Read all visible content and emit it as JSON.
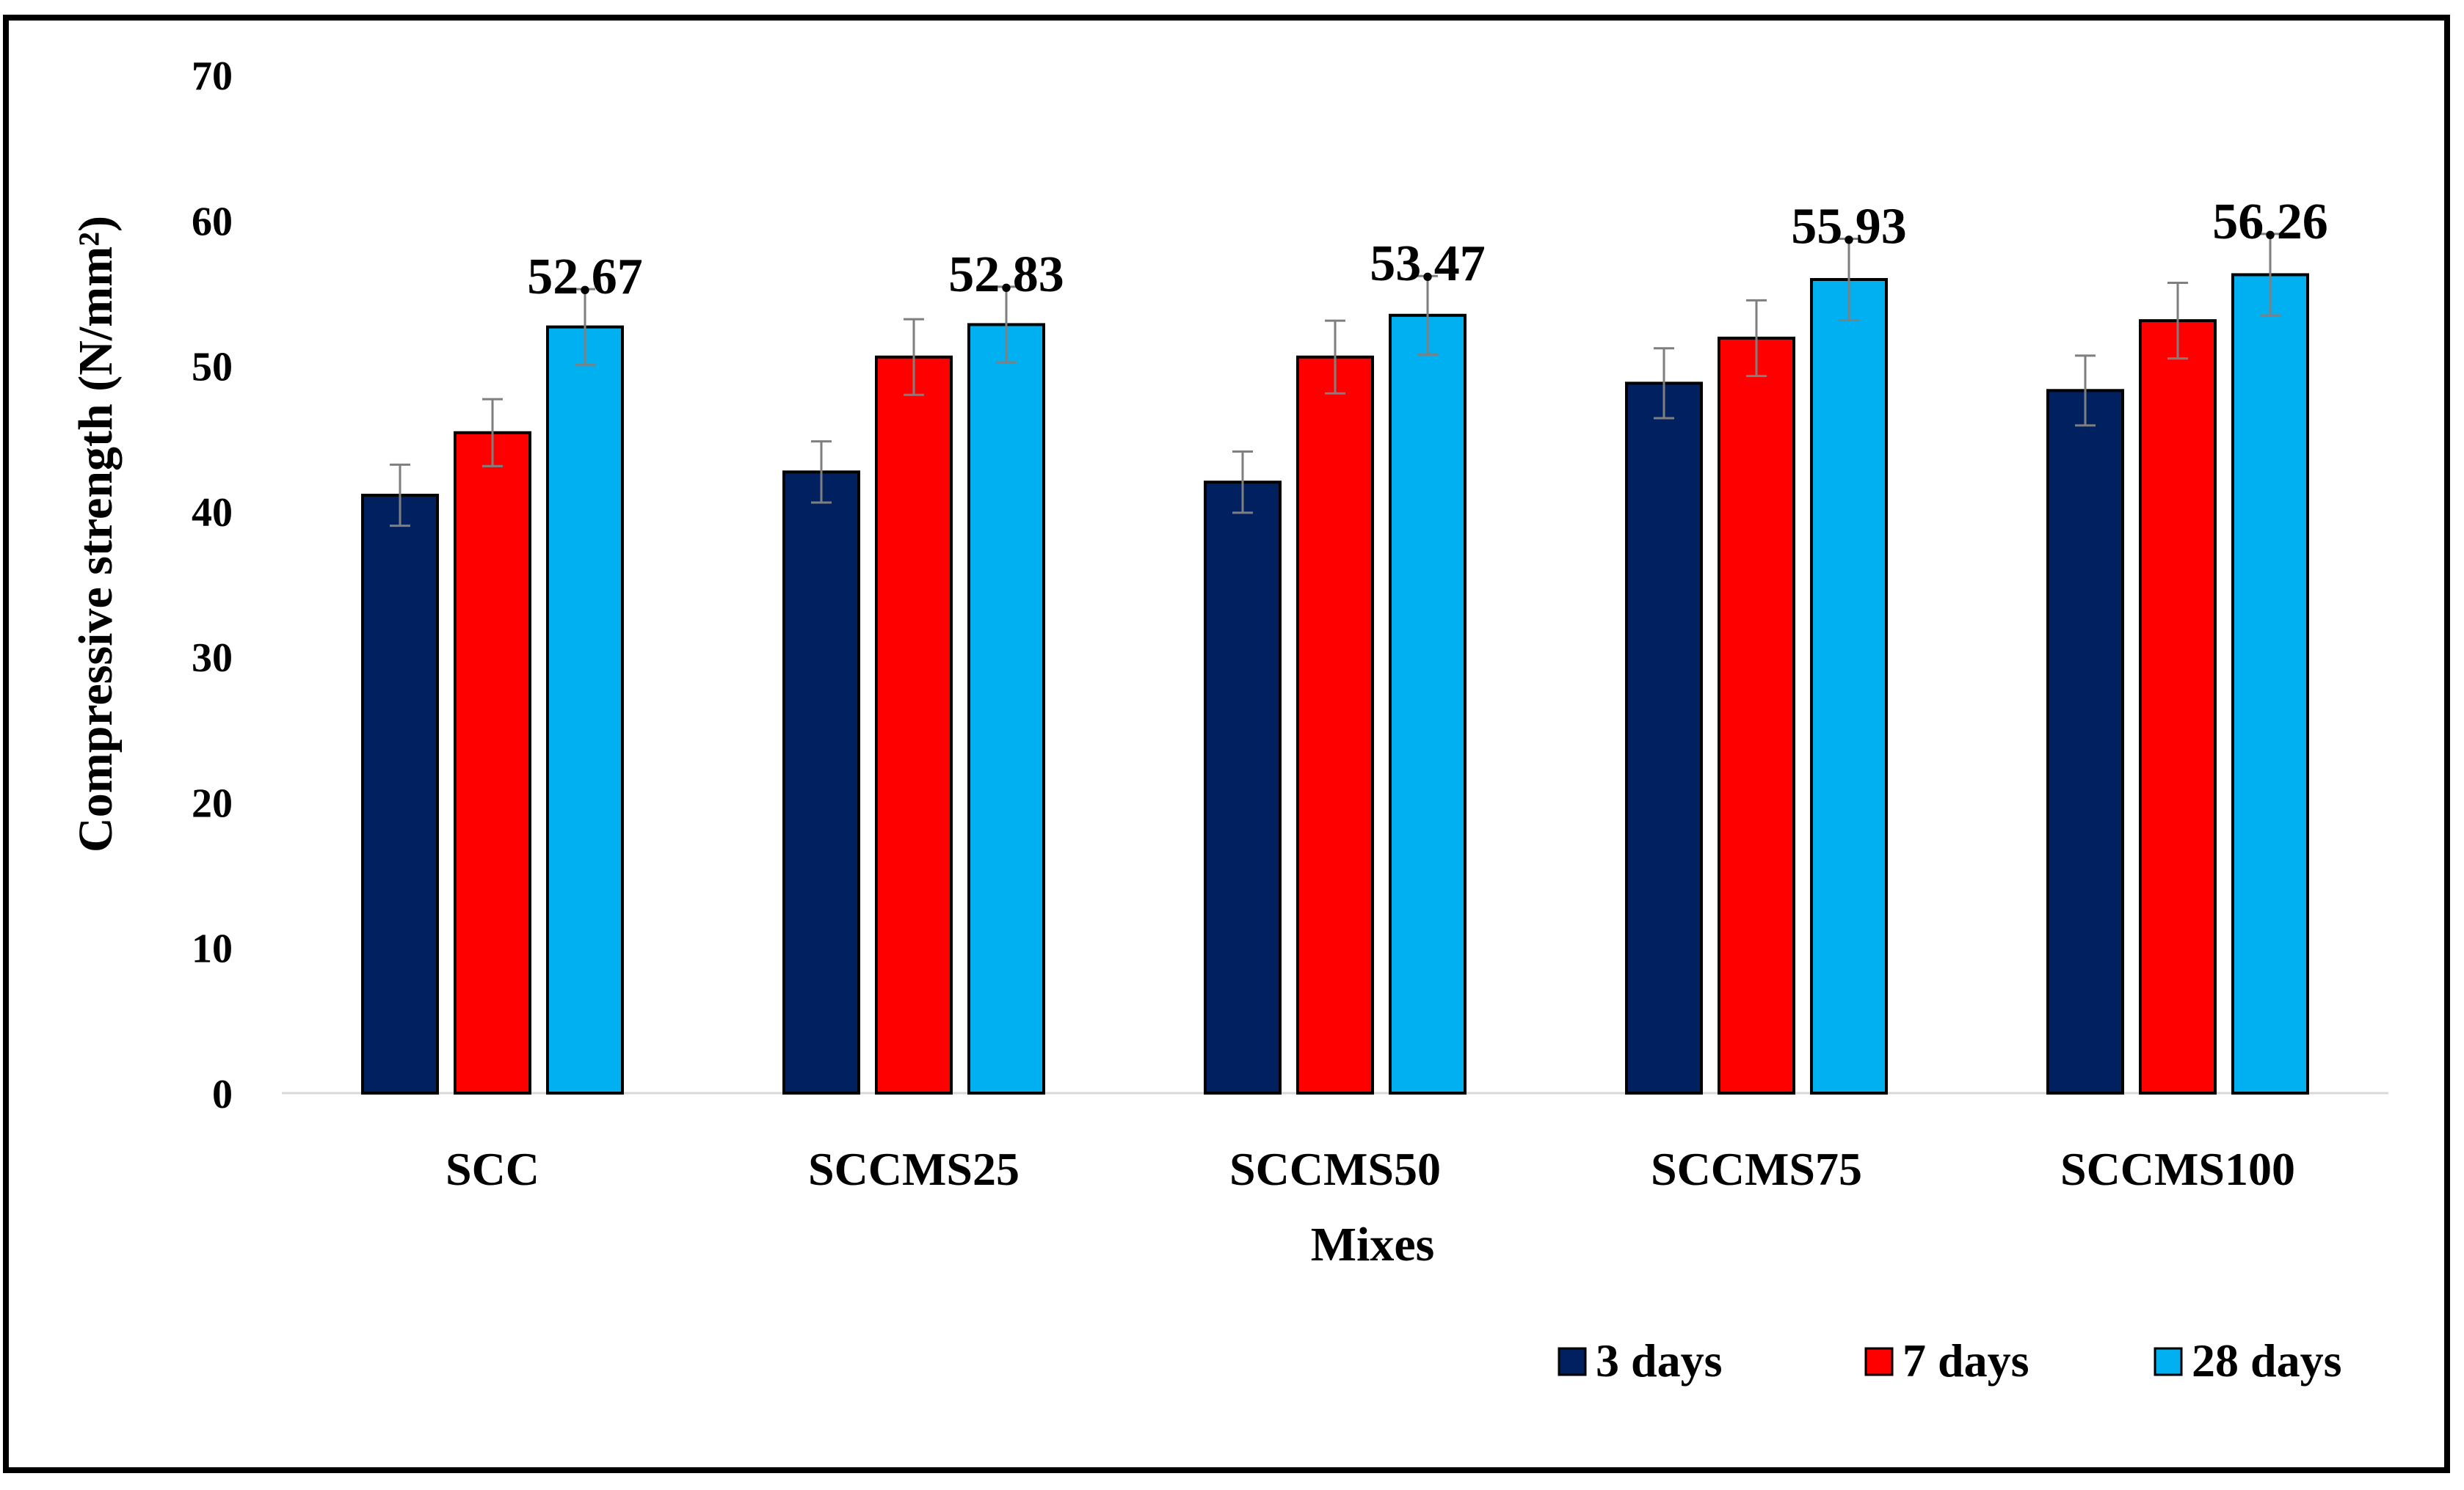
{
  "chart_data": {
    "type": "bar",
    "title": "",
    "xlabel": "Mixes",
    "ylabel": "Compressive strength (N/mm²)",
    "ylim": [
      0,
      70
    ],
    "yticks": [
      0,
      10,
      20,
      30,
      40,
      50,
      60,
      70
    ],
    "categories": [
      "SCC",
      "SCCMS25",
      "SCCMS50",
      "SCCMS75",
      "SCCMS100"
    ],
    "series": [
      {
        "name": "3 days",
        "color": "#002060",
        "values": [
          41.1,
          42.7,
          42.0,
          48.8,
          48.3
        ],
        "errors": [
          2.1,
          2.1,
          2.1,
          2.4,
          2.4
        ]
      },
      {
        "name": "7 days",
        "color": "#ff0000",
        "values": [
          45.4,
          50.6,
          50.6,
          51.9,
          53.1
        ],
        "errors": [
          2.3,
          2.6,
          2.5,
          2.6,
          2.6
        ]
      },
      {
        "name": "28 days",
        "color": "#00b0f0",
        "values": [
          52.67,
          52.83,
          53.47,
          55.93,
          56.26
        ],
        "errors": [
          2.6,
          2.6,
          2.7,
          2.8,
          2.8
        ]
      }
    ],
    "data_labels": {
      "series": "28 days",
      "labels": [
        "52.67",
        "52.83",
        "53.47",
        "55.93",
        "56.26"
      ]
    },
    "legend": {
      "position": "bottom-right",
      "entries": [
        "3 days",
        "7 days",
        "28 days"
      ]
    },
    "grid": false
  }
}
